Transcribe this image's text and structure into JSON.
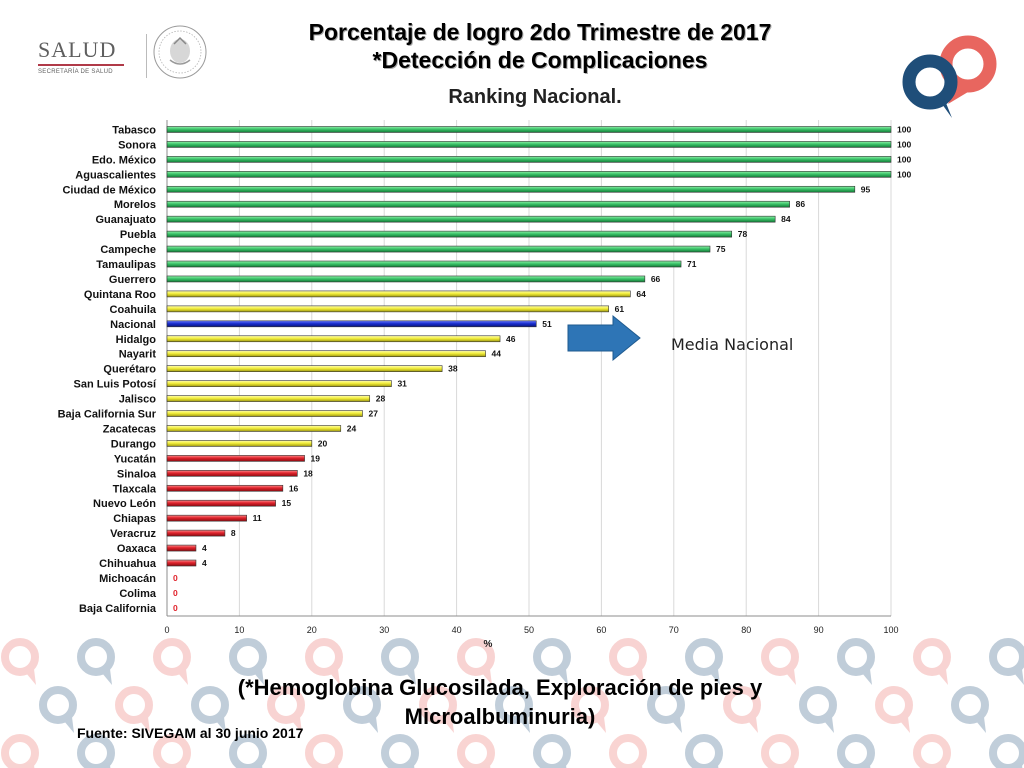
{
  "header": {
    "title_line1": "Porcentaje de logro 2do Trimestre de 2017",
    "title_line2": "*Detección de Complicaciones",
    "subtitle": "Ranking Nacional."
  },
  "logo": {
    "word": "SALUD",
    "sub": "SECRETARÍA DE SALUD"
  },
  "colors": {
    "green": "#3dc46a",
    "yellow": "#f2ee3a",
    "blue": "#1a2fd0",
    "red": "#e0232c",
    "arrow": "#2e75b6",
    "brand_red": "#e8665f",
    "brand_blue": "#1f4e79"
  },
  "annotation": {
    "label": "Media Nacional"
  },
  "footer": {
    "note_line1": "(*Hemoglobina Glucosilada, Exploración de pies y",
    "note_line2": "Microalbuminuria)",
    "source": "Fuente: SIVEGAM al 30 junio 2017"
  },
  "chart_data": {
    "type": "bar",
    "orientation": "horizontal",
    "xlabel": "%",
    "xlim": [
      0,
      100
    ],
    "xticks": [
      0,
      10,
      20,
      30,
      40,
      50,
      60,
      70,
      80,
      90,
      100
    ],
    "grid": true,
    "categories": [
      "Tabasco",
      "Sonora",
      "Edo. México",
      "Aguascalientes",
      "Ciudad de México",
      "Morelos",
      "Guanajuato",
      "Puebla",
      "Campeche",
      "Tamaulipas",
      "Guerrero",
      "Quintana Roo",
      "Coahuila",
      "Nacional",
      "Hidalgo",
      "Nayarit",
      "Querétaro",
      "San Luis Potosí",
      "Jalisco",
      "Baja California Sur",
      "Zacatecas",
      "Durango",
      "Yucatán",
      "Sinaloa",
      "Tlaxcala",
      "Nuevo León",
      "Chiapas",
      "Veracruz",
      "Oaxaca",
      "Chihuahua",
      "Michoacán",
      "Colima",
      "Baja California"
    ],
    "values": [
      100,
      100,
      100,
      100,
      95,
      86,
      84,
      78,
      75,
      71,
      66,
      64,
      61,
      51,
      46,
      44,
      38,
      31,
      28,
      27,
      24,
      20,
      19,
      18,
      16,
      15,
      11,
      8,
      4,
      4,
      0,
      0,
      0
    ],
    "bar_colors": [
      "green",
      "green",
      "green",
      "green",
      "green",
      "green",
      "green",
      "green",
      "green",
      "green",
      "green",
      "yellow",
      "yellow",
      "blue",
      "yellow",
      "yellow",
      "yellow",
      "yellow",
      "yellow",
      "yellow",
      "yellow",
      "yellow",
      "red",
      "red",
      "red",
      "red",
      "red",
      "red",
      "red",
      "red",
      "red",
      "red",
      "red"
    ]
  }
}
